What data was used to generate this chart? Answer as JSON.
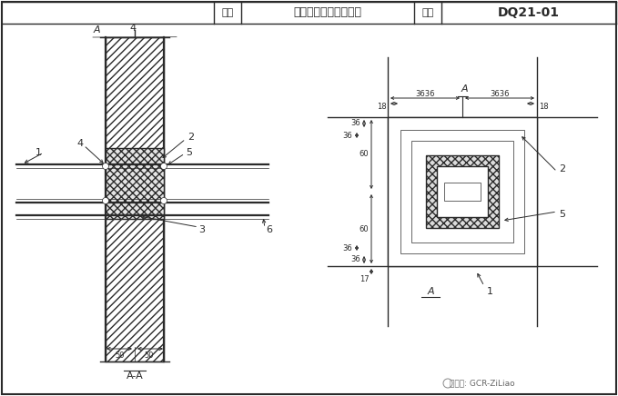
{
  "bg_color": "#ffffff",
  "line_color": "#2a2a2a",
  "title_label1": "图名",
  "title_text": "金属线槽穿墙防火封堵",
  "title_label2": "图号",
  "title_number": "DQ21-01",
  "watermark": "微信号: GCR-ZiLiao",
  "lw_main": 1.0,
  "lw_thin": 0.5,
  "lw_thick": 1.6
}
